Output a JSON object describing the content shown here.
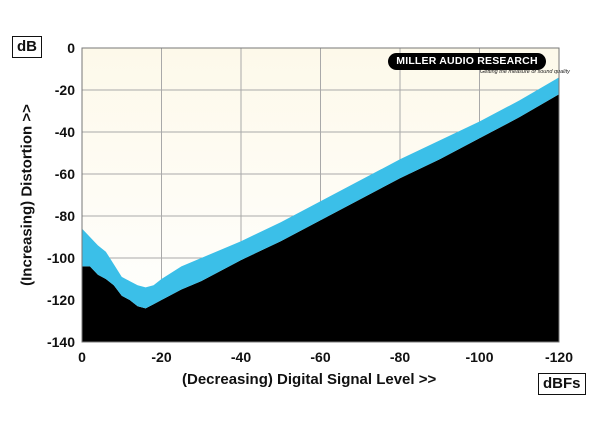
{
  "chart_data": {
    "type": "area",
    "ylabel": "(Increasing) Distortion >>",
    "xlabel": "(Decreasing) Digital Signal Level >>",
    "y_unit": "dB",
    "x_unit": "dBFs",
    "xlim": [
      0,
      -120
    ],
    "ylim": [
      -140,
      0
    ],
    "x_ticks": [
      0,
      -20,
      -40,
      -60,
      -80,
      -100,
      -120
    ],
    "x_tick_labels": [
      "0",
      "-20",
      "-40",
      "-60",
      "-80",
      "-100",
      "-120"
    ],
    "y_ticks": [
      0,
      -20,
      -40,
      -60,
      -80,
      -100,
      -120,
      -140
    ],
    "y_tick_labels": [
      "0",
      "-20",
      "-40",
      "-60",
      "-80",
      "-100",
      "-120",
      "-140"
    ],
    "grid": true,
    "series": [
      {
        "role": "upper-bound",
        "x": [
          0,
          -2,
          -4,
          -6,
          -8,
          -10,
          -12,
          -14,
          -16,
          -18,
          -20,
          -25,
          -30,
          -40,
          -50,
          -60,
          -70,
          -80,
          -90,
          -100,
          -110,
          -120
        ],
        "values": [
          -86,
          -90,
          -94,
          -97,
          -103,
          -109,
          -111,
          -113,
          -114,
          -113,
          -110,
          -104,
          -100,
          -92,
          -83,
          -73,
          -63,
          -53,
          -44,
          -35,
          -25,
          -14
        ]
      },
      {
        "role": "lower-bound",
        "x": [
          0,
          -2,
          -4,
          -6,
          -8,
          -10,
          -12,
          -14,
          -16,
          -18,
          -20,
          -25,
          -30,
          -40,
          -50,
          -60,
          -70,
          -80,
          -90,
          -100,
          -110,
          -120
        ],
        "values": [
          -104,
          -104,
          -108,
          -110,
          -113,
          -118,
          -120,
          -123,
          -124,
          -122,
          -120,
          -115,
          -111,
          -101,
          -92,
          -82,
          -72,
          -62,
          -53,
          -43,
          -33,
          -22
        ]
      }
    ],
    "colors": {
      "band": "#3bbfe8",
      "below": "#000000",
      "background_top": "#fdf9ea",
      "background_bottom": "#ffffff",
      "grid": "#a9a9a9"
    }
  },
  "brand": {
    "name": "MILLER AUDIO RESEARCH",
    "tagline": "Getting the measure of sound quality"
  }
}
